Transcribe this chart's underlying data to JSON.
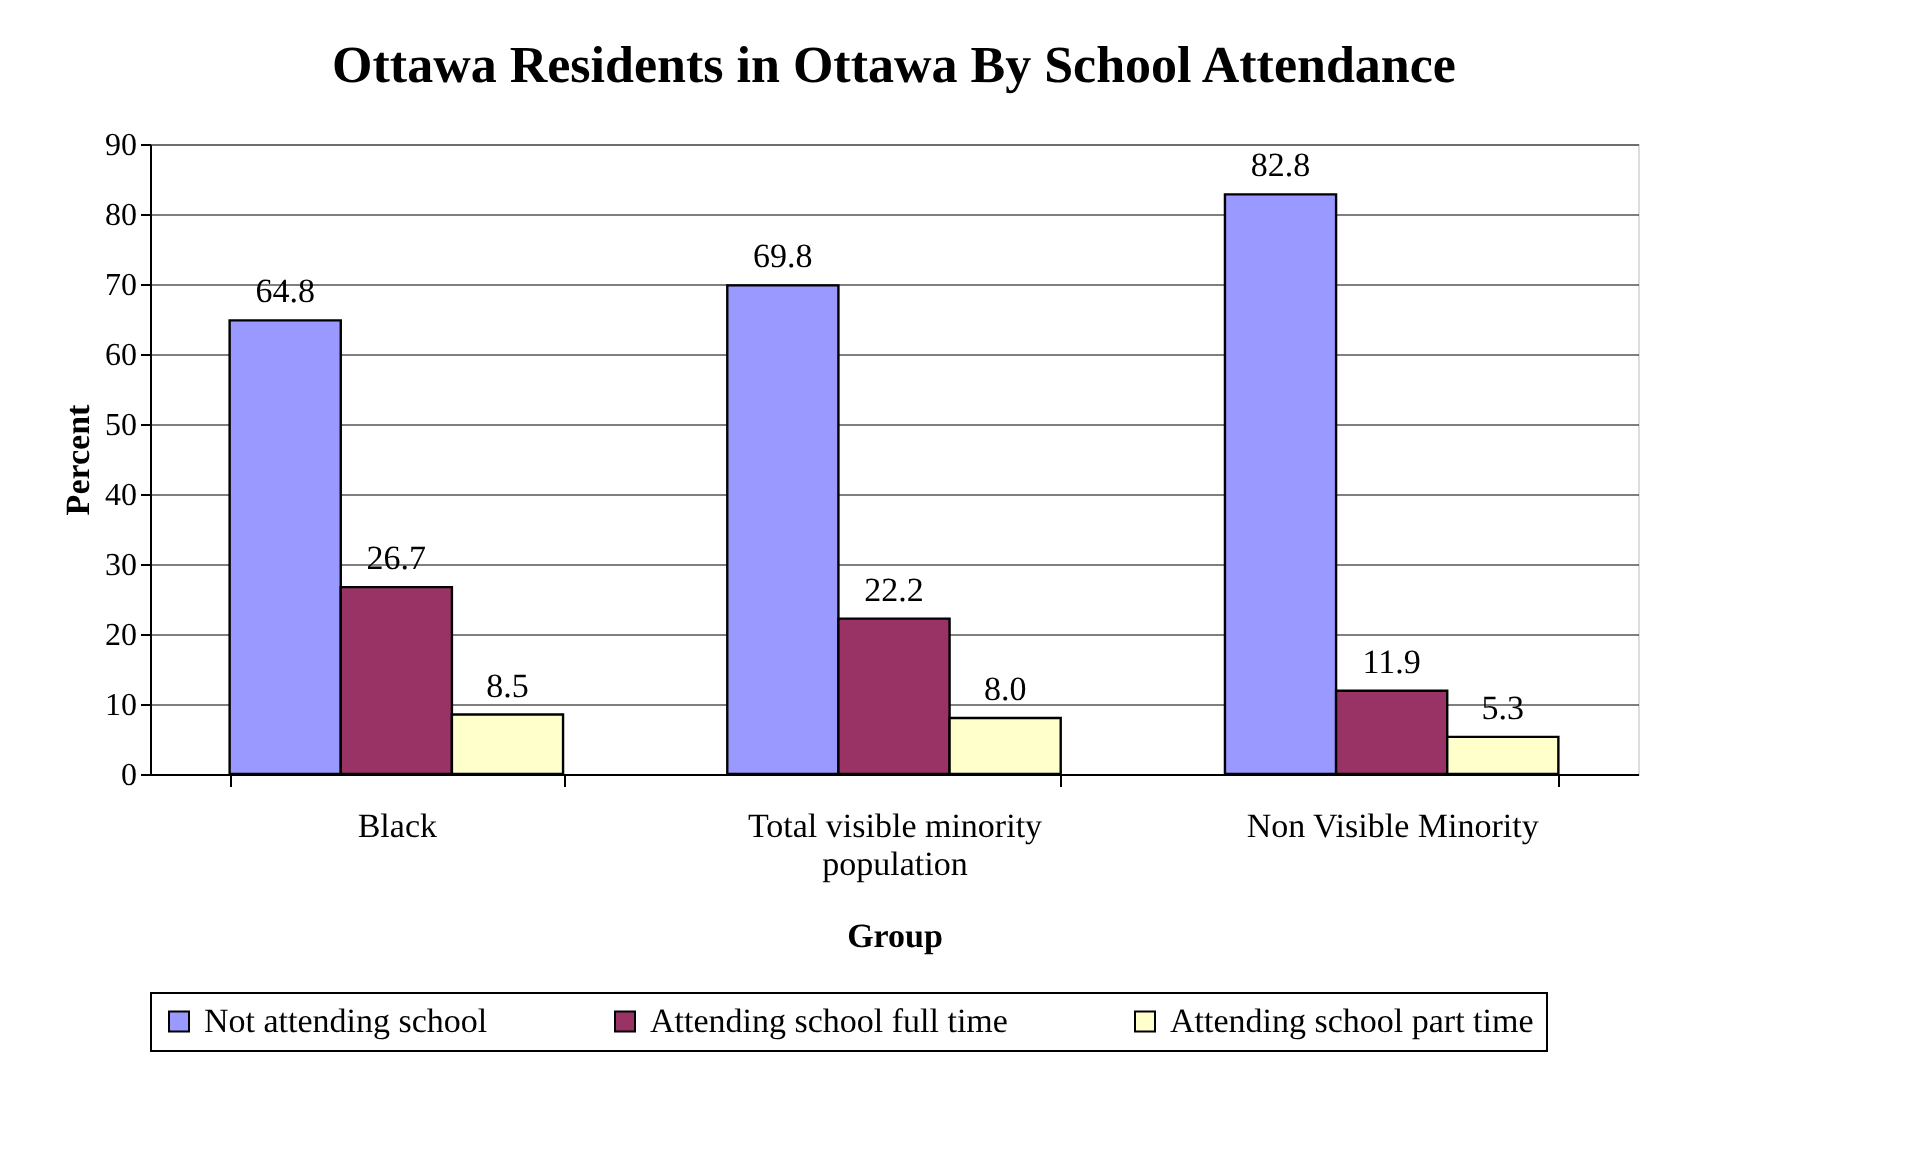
{
  "chart_data": {
    "type": "bar",
    "title": "Ottawa Residents in Ottawa By School Attendance",
    "xlabel": "Group",
    "ylabel": "Percent",
    "categories": [
      "Black",
      "Total visible minority population",
      "Non Visible Minority"
    ],
    "series": [
      {
        "name": "Not attending school",
        "color": "#9999ff",
        "values": [
          64.8,
          69.8,
          82.8
        ],
        "value_labels": [
          "64.8",
          "69.8",
          "82.8"
        ]
      },
      {
        "name": "Attending school full time",
        "color": "#993366",
        "values": [
          26.7,
          22.2,
          11.9
        ],
        "value_labels": [
          "26.7",
          "22.2",
          "11.9"
        ]
      },
      {
        "name": "Attending school part time",
        "color": "#ffffcc",
        "values": [
          8.5,
          8.0,
          5.3
        ],
        "value_labels": [
          "8.5",
          "8.0",
          "5.3"
        ]
      }
    ],
    "ylim": [
      0,
      90
    ],
    "yticks": [
      0,
      10,
      20,
      30,
      40,
      50,
      60,
      70,
      80,
      90
    ],
    "grid": "y",
    "legend": "bottom"
  }
}
